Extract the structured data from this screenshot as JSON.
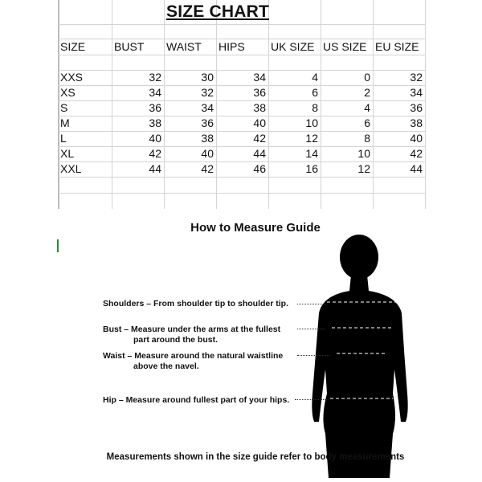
{
  "size_chart": {
    "title": "SIZE CHART",
    "headers": [
      "SIZE",
      "BUST",
      "WAIST",
      "HIPS",
      "UK SIZE",
      "US SIZE",
      "EU SIZE"
    ],
    "rows": [
      [
        "XXS",
        "32",
        "30",
        "34",
        "4",
        "0",
        "32"
      ],
      [
        "XS",
        "34",
        "32",
        "36",
        "6",
        "2",
        "34"
      ],
      [
        "S",
        "36",
        "34",
        "38",
        "8",
        "4",
        "36"
      ],
      [
        "M",
        "38",
        "36",
        "40",
        "10",
        "6",
        "38"
      ],
      [
        "L",
        "40",
        "38",
        "42",
        "12",
        "8",
        "40"
      ],
      [
        "XL",
        "42",
        "40",
        "44",
        "14",
        "10",
        "42"
      ],
      [
        "XXL",
        "44",
        "42",
        "46",
        "16",
        "12",
        "44"
      ]
    ]
  },
  "guide": {
    "title": "How to Measure Guide",
    "shoulders": "Shoulders – From shoulder tip to shoulder tip.",
    "bust_1": "Bust – Measure under the arms at the fullest",
    "bust_2": "part around the bust.",
    "waist_1": "Waist – Measure around the natural waistline",
    "waist_2": "above the navel.",
    "hip": "Hip – Measure around fullest part of your hips.",
    "footer": "Measurements shown in the size guide refer to body measurements"
  }
}
